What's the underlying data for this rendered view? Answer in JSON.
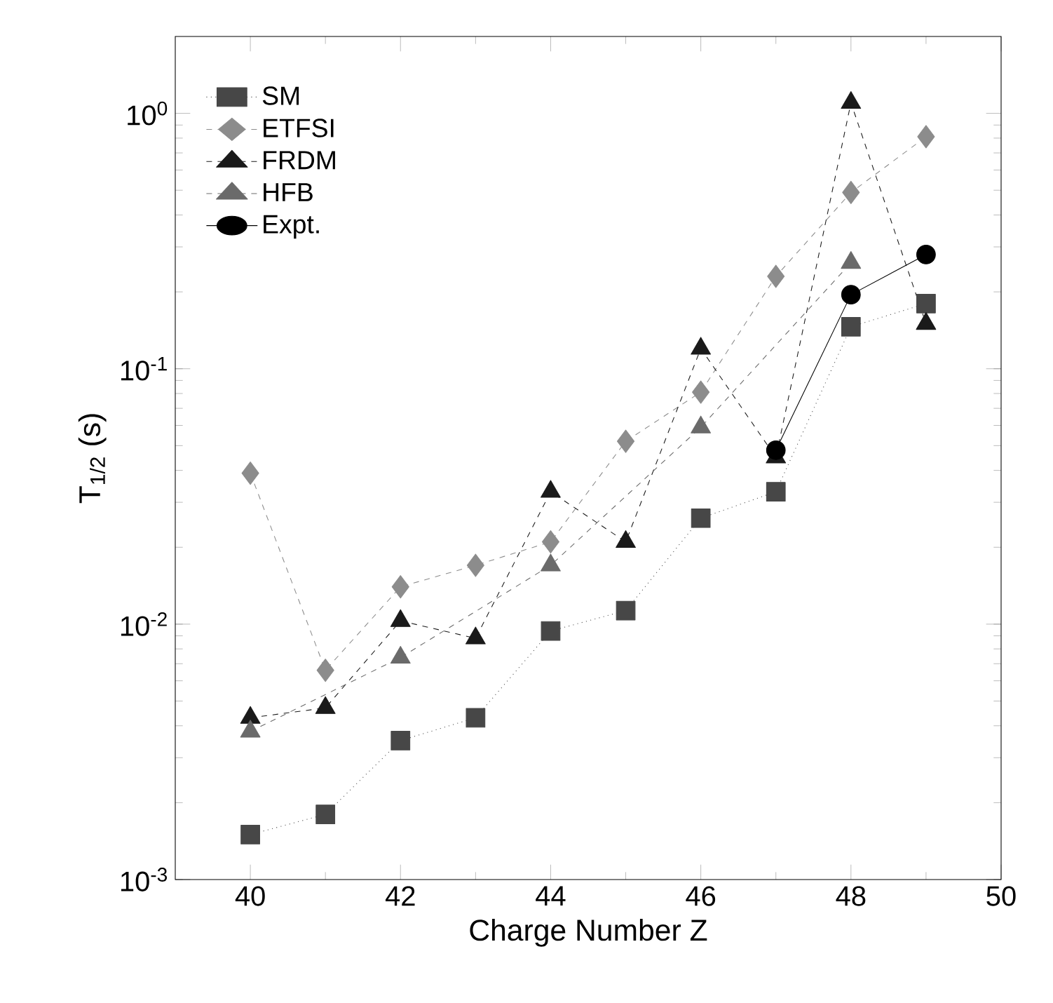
{
  "chart_data": {
    "type": "line",
    "xlabel": "Charge Number Z",
    "ylabel": "T$_{1/2}$ (s)",
    "log": "y",
    "xlim": [
      39,
      50
    ],
    "xticks": [
      40,
      42,
      44,
      46,
      48,
      50
    ],
    "ylim": [
      0.001,
      2
    ],
    "yticks": [
      {
        "value": 0.001,
        "label": "10$^{-3}$"
      },
      {
        "value": 0.01,
        "label": "10$^{-2}$"
      },
      {
        "value": 0.1,
        "label": "10$^{-1}$"
      },
      {
        "value": 1,
        "label": "10$^{0}$"
      }
    ],
    "legend": "top left",
    "grid": false,
    "series": [
      {
        "name": "SM",
        "color": "#474747",
        "marker": "square",
        "line_style": "dotted",
        "x": [
          40,
          41,
          42,
          43,
          44,
          45,
          46,
          47,
          48,
          49
        ],
        "values": [
          0.0015,
          0.0018,
          0.0035,
          0.0043,
          0.0094,
          0.0113,
          0.026,
          0.033,
          0.146,
          0.18
        ]
      },
      {
        "name": "ETFSI",
        "color": "#8c8c8c",
        "marker": "diamond",
        "line_style": "dashed",
        "x": [
          40,
          41,
          42,
          43,
          44,
          45,
          46,
          47,
          48,
          49
        ],
        "values": [
          0.039,
          0.0066,
          0.014,
          0.017,
          0.021,
          0.052,
          0.081,
          0.23,
          0.49,
          0.81
        ]
      },
      {
        "name": "FRDM",
        "color": "#1a1a1a",
        "marker": "triangle",
        "line_style": "dashed",
        "x": [
          40,
          41,
          42,
          43,
          44,
          45,
          46,
          47,
          48,
          49
        ],
        "values": [
          0.0043,
          0.0047,
          0.0103,
          0.0088,
          0.033,
          0.021,
          0.12,
          0.045,
          1.1,
          0.15
        ]
      },
      {
        "name": "HFB",
        "color": "#6a6a6a",
        "marker": "triangle",
        "line_style": "dashed",
        "x": [
          40,
          42,
          44,
          46,
          48
        ],
        "values": [
          0.0038,
          0.0074,
          0.017,
          0.059,
          0.26
        ]
      },
      {
        "name": "Expt.",
        "color": "#000000",
        "marker": "circle",
        "line_style": "solid",
        "x": [
          47,
          48,
          49
        ],
        "values": [
          0.048,
          0.195,
          0.28
        ]
      }
    ]
  }
}
